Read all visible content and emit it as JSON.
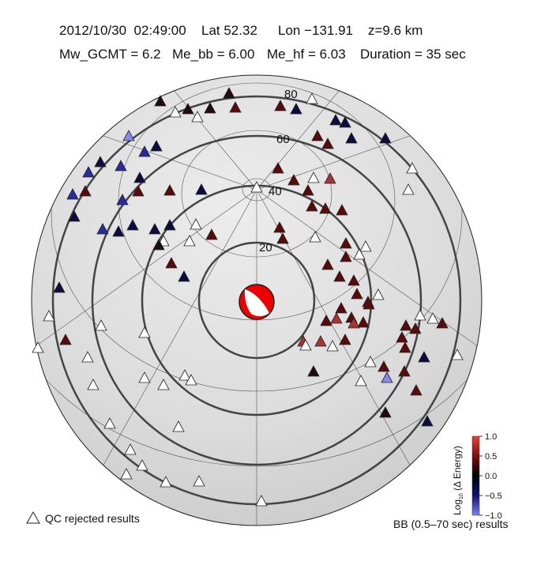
{
  "header": {
    "line1": [
      "2012/10/30  02:49:00",
      "Lat 52.32",
      "Lon −131.91",
      "z=9.6 km"
    ],
    "line2": [
      "Mw_GCMT = 6.2",
      "Me_bb = 6.00",
      "Me_hf = 6.03",
      "Duration = 35 sec"
    ]
  },
  "map": {
    "latitude_labels": [
      "20",
      "40",
      "60",
      "80"
    ]
  },
  "colorbar": {
    "label_main": "Log",
    "label_sub": "10",
    "label_rest": " (Δ Energy)",
    "lim": [
      -1,
      1
    ],
    "ticks": [
      {
        "value": 1,
        "label": "1.0"
      },
      {
        "value": 0.5,
        "label": "0.5"
      },
      {
        "value": 0,
        "label": "0.0"
      },
      {
        "value": -0.5,
        "label": "−0.5"
      },
      {
        "value": -1,
        "label": "−1.0"
      }
    ]
  },
  "legend": {
    "rejected": "QC rejected results",
    "results": "BB (0.5–70 sec) results"
  }
}
